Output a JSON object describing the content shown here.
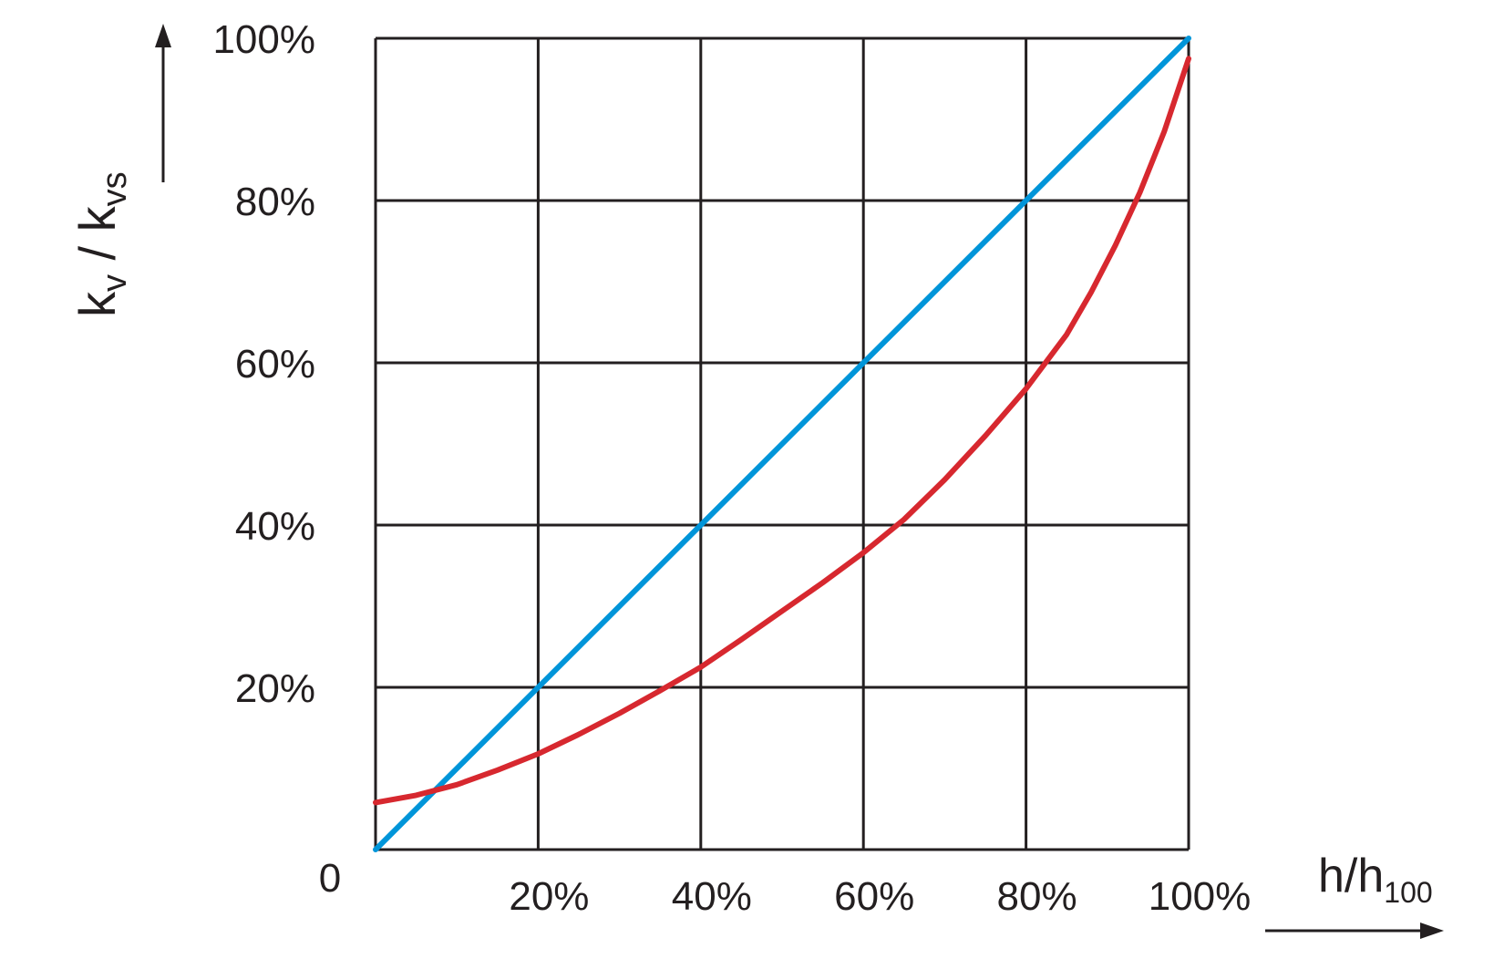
{
  "chart_data": {
    "type": "line",
    "title": "",
    "xlabel": {
      "main": "h/h",
      "sub": "100"
    },
    "ylabel": {
      "k1": "k",
      "sub1": "v",
      "slash": " / ",
      "k2": "k",
      "sub2": "vs"
    },
    "origin_label": "0",
    "x_tick_labels": [
      "20%",
      "40%",
      "60%",
      "80%",
      "100%"
    ],
    "y_tick_labels": [
      "20%",
      "40%",
      "60%",
      "80%",
      "100%"
    ],
    "xlim": [
      0,
      100
    ],
    "ylim": [
      0,
      100
    ],
    "grid": true,
    "legend": "none",
    "series": [
      {
        "color": "#0095d9",
        "x": [
          0,
          20,
          40,
          60,
          80,
          100
        ],
        "y": [
          0,
          20,
          40,
          60,
          80,
          100
        ]
      },
      {
        "color": "#d7282f",
        "x": [
          0,
          5,
          10,
          15,
          20,
          25,
          30,
          35,
          40,
          45,
          50,
          55,
          60,
          65,
          70,
          75,
          80,
          85,
          88,
          91,
          94,
          97,
          100
        ],
        "y": [
          5.8,
          6.7,
          8.0,
          9.8,
          11.8,
          14.2,
          16.8,
          19.6,
          22.5,
          25.9,
          29.4,
          32.9,
          36.6,
          40.7,
          45.6,
          51.0,
          56.8,
          63.5,
          68.7,
          74.5,
          81.0,
          88.5,
          97.5
        ]
      }
    ]
  }
}
